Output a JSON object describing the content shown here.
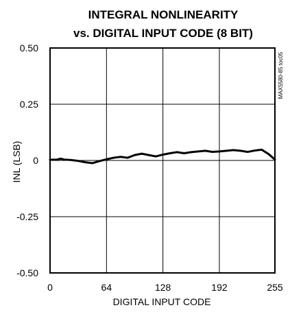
{
  "chart_data": {
    "type": "line",
    "title_lines": [
      "INTEGRAL NONLINEARITY",
      "vs. DIGITAL INPUT CODE (8 BIT)"
    ],
    "xlabel": "DIGITAL INPUT CODE",
    "ylabel": "INL (LSB)",
    "side_code": "MAX5580-85 toc05",
    "xlim": [
      0,
      255
    ],
    "ylim": [
      -0.5,
      0.5
    ],
    "x_ticks": [
      0,
      64,
      128,
      192,
      255
    ],
    "y_ticks": [
      0.5,
      0.25,
      0,
      -0.25,
      -0.5
    ],
    "x_tick_labels": [
      "0",
      "64",
      "128",
      "192",
      "255"
    ],
    "y_tick_labels": [
      "0.50",
      "0.25",
      "0",
      "-0.25",
      "-0.50"
    ],
    "grid": true,
    "line_color": "#000000",
    "series": [
      {
        "x": [
          0,
          8,
          12,
          16,
          24,
          32,
          40,
          48,
          56,
          64,
          72,
          80,
          88,
          96,
          104,
          112,
          120,
          128,
          136,
          144,
          152,
          160,
          168,
          176,
          184,
          192,
          200,
          208,
          216,
          224,
          232,
          240,
          248,
          255
        ],
        "y": [
          0.003,
          0.004,
          0.008,
          0.004,
          0.002,
          -0.002,
          -0.008,
          -0.012,
          -0.003,
          0.005,
          0.012,
          0.016,
          0.012,
          0.024,
          0.03,
          0.024,
          0.018,
          0.026,
          0.032,
          0.037,
          0.032,
          0.037,
          0.04,
          0.043,
          0.038,
          0.04,
          0.043,
          0.046,
          0.043,
          0.038,
          0.044,
          0.048,
          0.028,
          0.004
        ]
      }
    ]
  }
}
